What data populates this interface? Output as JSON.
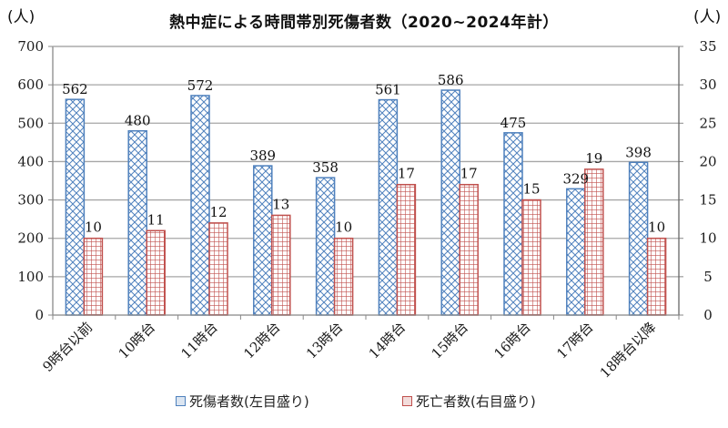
{
  "chart_data": {
    "type": "bar",
    "title": "熱中症による時間帯別死傷者数（2020~2024年計）",
    "y_left_unit": "(人)",
    "y_right_unit": "(人)",
    "categories": [
      "9時台以前",
      "10時台",
      "11時台",
      "12時台",
      "13時台",
      "14時台",
      "15時台",
      "16時台",
      "17時台",
      "18時台以降"
    ],
    "series": [
      {
        "name": "死傷者数(左目盛り)",
        "axis": "left",
        "color": "#4f81bd",
        "pattern": "diamond-crosshatch",
        "values": [
          562,
          480,
          572,
          389,
          358,
          561,
          586,
          475,
          329,
          398
        ]
      },
      {
        "name": "死亡者数(右目盛り)",
        "axis": "right",
        "color": "#c0504d",
        "pattern": "grid",
        "values": [
          10,
          11,
          12,
          13,
          10,
          17,
          17,
          15,
          19,
          10
        ]
      }
    ],
    "y_left": {
      "min": 0,
      "max": 700,
      "ticks": [
        0,
        100,
        200,
        300,
        400,
        500,
        600,
        700
      ]
    },
    "y_right": {
      "min": 0,
      "max": 35,
      "ticks": [
        0,
        5,
        10,
        15,
        20,
        25,
        30,
        35
      ]
    },
    "grid": true,
    "legend_position": "bottom"
  },
  "legend": {
    "injured": "死傷者数(左目盛り)",
    "deaths": "死亡者数(右目盛り)"
  }
}
